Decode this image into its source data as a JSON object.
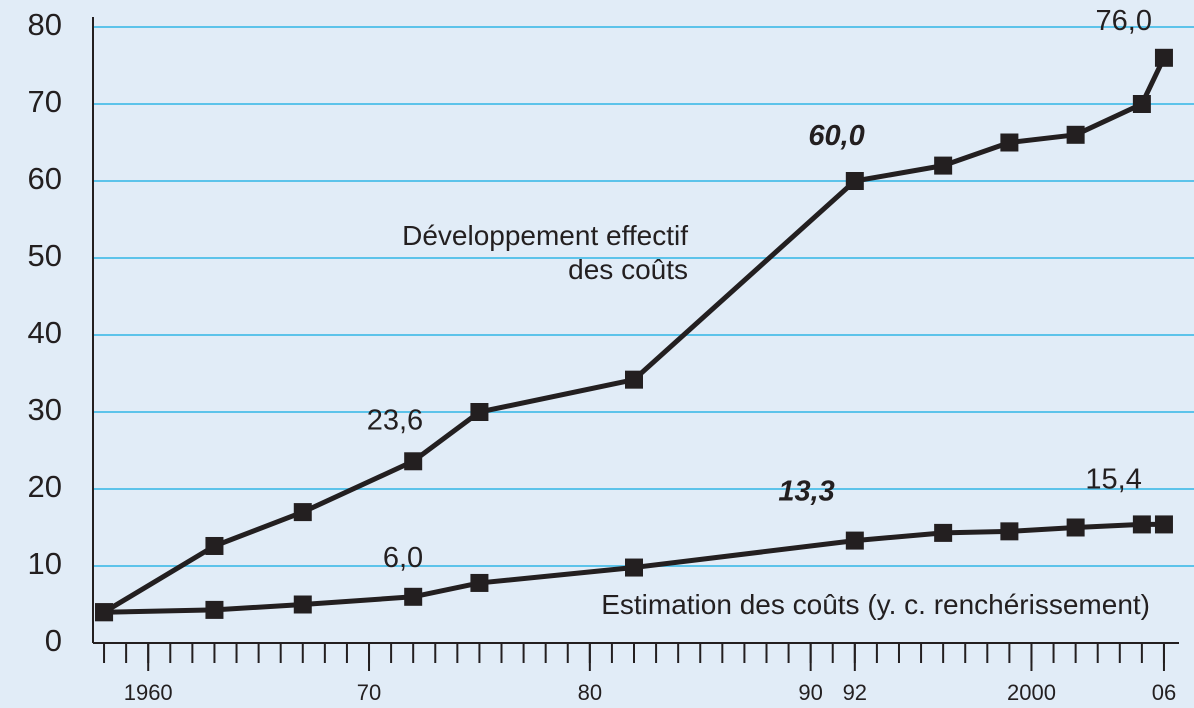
{
  "chart_data": {
    "type": "line",
    "x_type": "numeric",
    "xlim": [
      1957.5,
      2006.5
    ],
    "ylim": [
      0,
      80
    ],
    "yticks": [
      0,
      10,
      20,
      30,
      40,
      50,
      60,
      70,
      80
    ],
    "xticks": [
      {
        "value": 1960,
        "label": "1960"
      },
      {
        "value": 1970,
        "label": "70"
      },
      {
        "value": 1980,
        "label": "80"
      },
      {
        "value": 1990,
        "label": "90"
      },
      {
        "value": 1992,
        "label": "92"
      },
      {
        "value": 2000,
        "label": "2000"
      },
      {
        "value": 2006,
        "label": "06"
      }
    ],
    "xminor_ticks": [
      1958,
      1959,
      1960,
      1961,
      1962,
      1963,
      1964,
      1965,
      1966,
      1967,
      1968,
      1969,
      1970,
      1971,
      1972,
      1973,
      1974,
      1975,
      1976,
      1977,
      1978,
      1979,
      1980,
      1981,
      1982,
      1983,
      1984,
      1985,
      1986,
      1987,
      1988,
      1989,
      1990,
      1991,
      1992,
      1993,
      1994,
      1995,
      1996,
      1997,
      1998,
      1999,
      2000,
      2001,
      2002,
      2003,
      2004,
      2005,
      2006
    ],
    "grid": true,
    "marker": "square",
    "series": [
      {
        "name": [
          "Développement effectif",
          "des coûts"
        ],
        "color": "#231f20",
        "x": [
          1958,
          1963,
          1967,
          1972,
          1975,
          1982,
          1992,
          1996,
          1999,
          2002,
          2005,
          2006
        ],
        "values": [
          4,
          12.6,
          17,
          23.6,
          30,
          34.2,
          60,
          62,
          65,
          66,
          70,
          76
        ],
        "value_labels": [
          null,
          null,
          null,
          "23,6",
          null,
          null,
          "60,0",
          null,
          null,
          null,
          null,
          "76,0"
        ],
        "emphasized_labels": [
          6
        ]
      },
      {
        "name": [
          "Estimation des coûts (y. c. renchérissement)"
        ],
        "color": "#231f20",
        "x": [
          1958,
          1963,
          1967,
          1972,
          1975,
          1982,
          1992,
          1996,
          1999,
          2002,
          2005,
          2006
        ],
        "values": [
          4,
          4.3,
          5,
          6,
          7.8,
          9.8,
          13.3,
          14.3,
          14.5,
          15,
          15.4,
          15.4
        ],
        "value_labels": [
          null,
          null,
          null,
          "6,0",
          null,
          null,
          "13,3",
          null,
          null,
          null,
          "15,4",
          null
        ],
        "emphasized_labels": [
          6
        ]
      }
    ]
  }
}
